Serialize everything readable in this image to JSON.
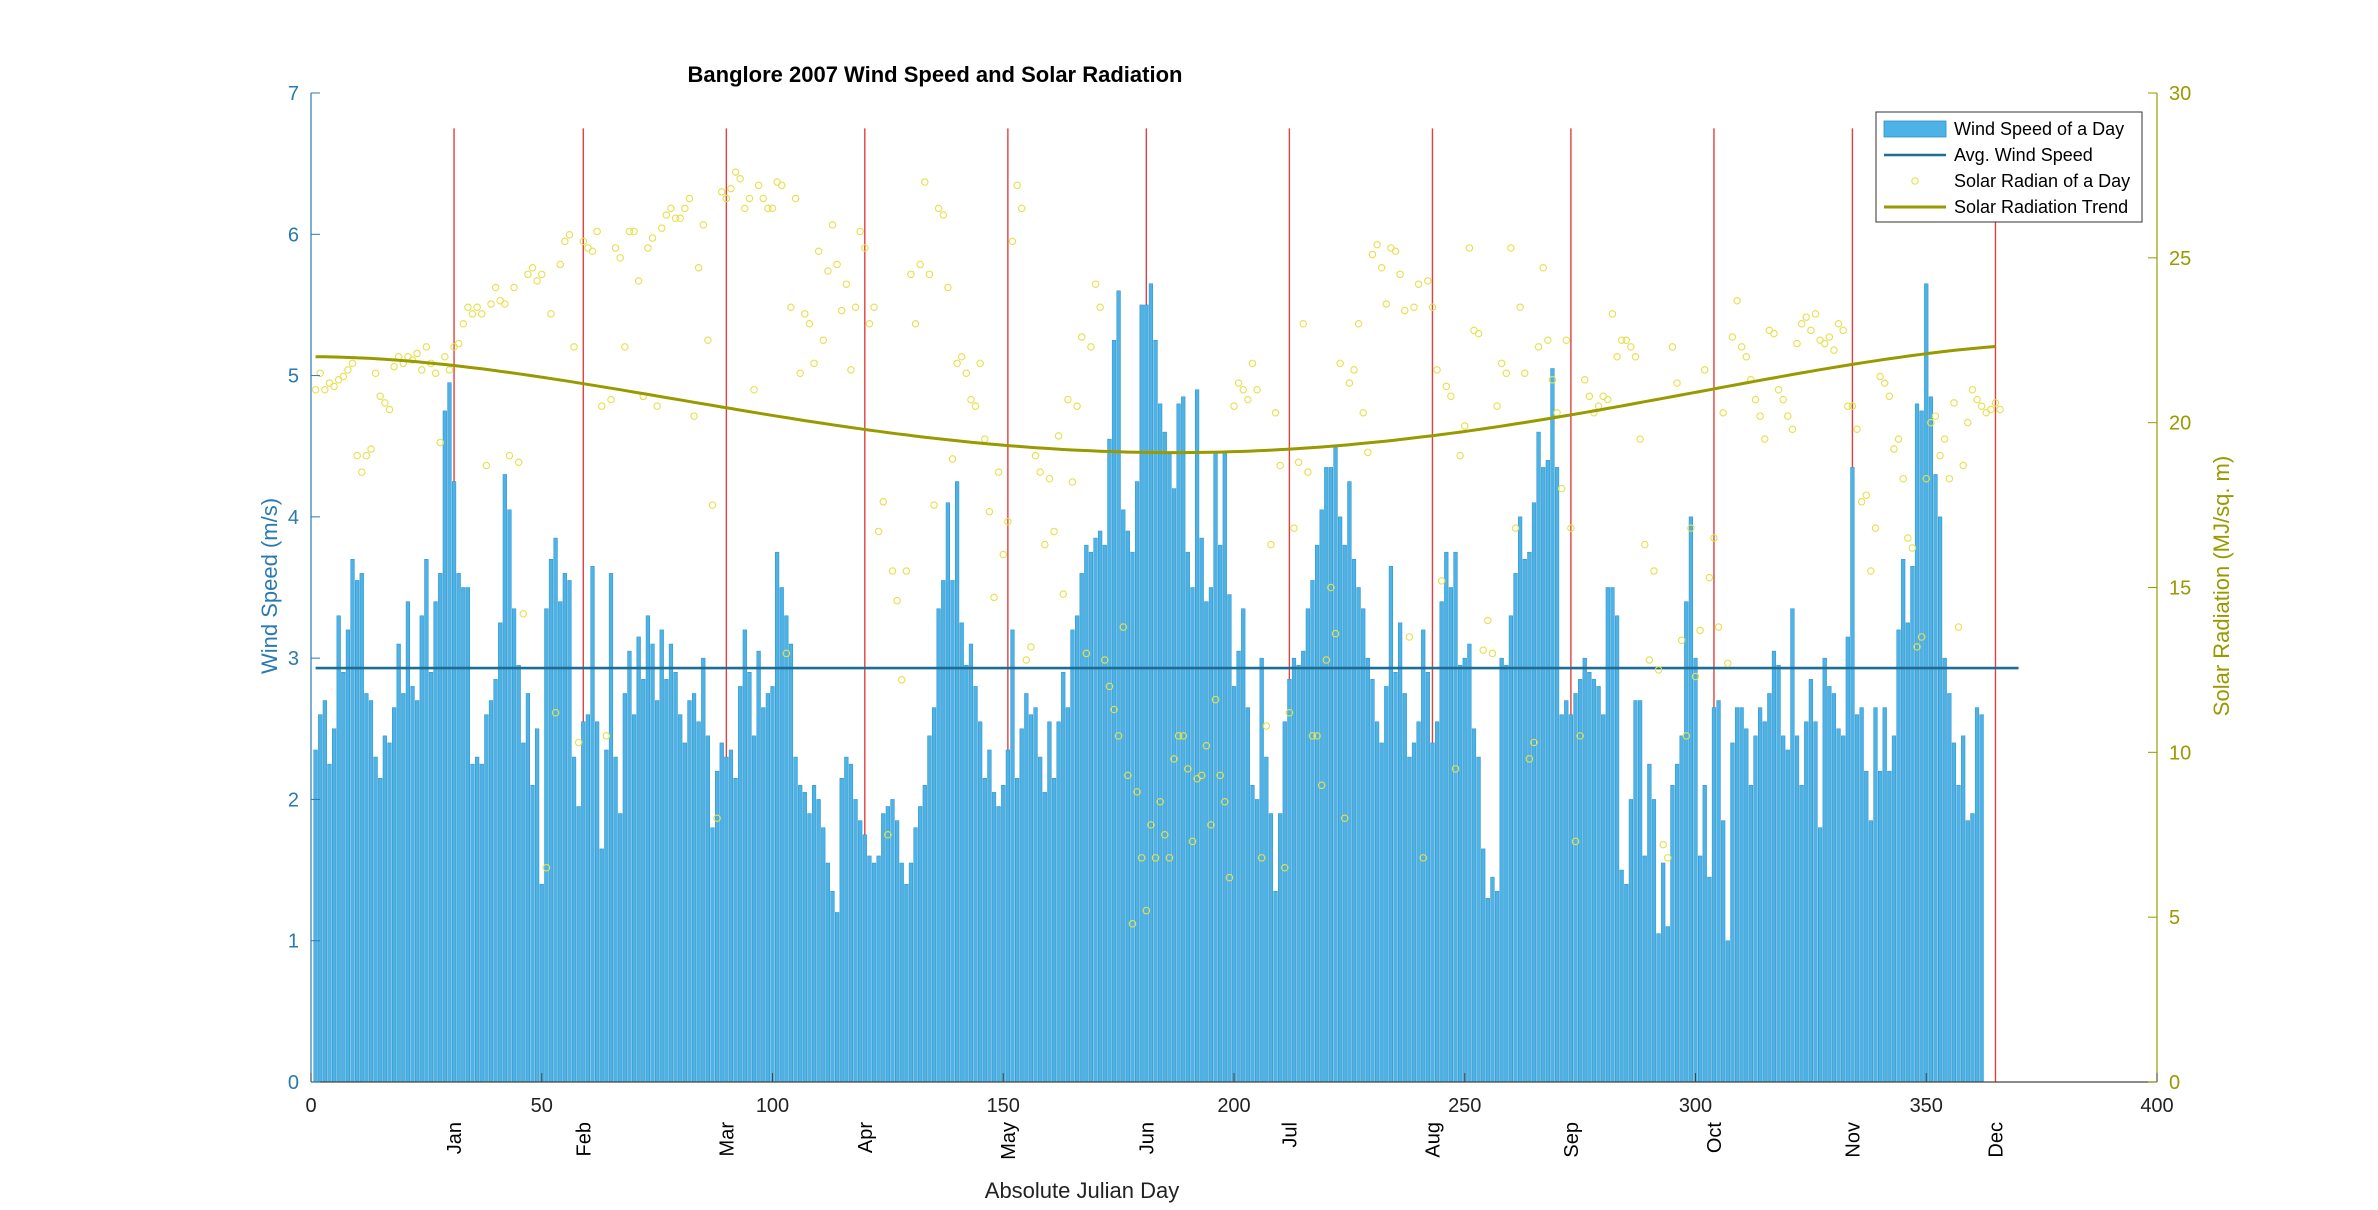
{
  "chart_data": {
    "type": "bar",
    "title": "Banglore 2007 Wind Speed and Solar Radiation",
    "xlabel": "Absolute Julian Day",
    "ylabel_left": "Wind Speed (m/s)",
    "ylabel_right": "Solar Radiation (MJ/sq. m)",
    "xlim": [
      0,
      400
    ],
    "ylim_left": [
      0,
      7
    ],
    "ylim_right": [
      0,
      30
    ],
    "x_ticks": [
      0,
      50,
      100,
      150,
      200,
      250,
      300,
      350,
      400
    ],
    "y_left_ticks": [
      0,
      1,
      2,
      3,
      4,
      5,
      6,
      7
    ],
    "y_right_ticks": [
      0,
      5,
      10,
      15,
      20,
      25,
      30
    ],
    "month_lines": [
      {
        "label": "Jan",
        "day": 31
      },
      {
        "label": "Feb",
        "day": 59
      },
      {
        "label": "Mar",
        "day": 90
      },
      {
        "label": "Apr",
        "day": 120
      },
      {
        "label": "May",
        "day": 151
      },
      {
        "label": "Jun",
        "day": 181
      },
      {
        "label": "Jul",
        "day": 212
      },
      {
        "label": "Aug",
        "day": 243
      },
      {
        "label": "Sep",
        "day": 273
      },
      {
        "label": "Oct",
        "day": 304
      },
      {
        "label": "Nov",
        "day": 334
      },
      {
        "label": "Dec",
        "day": 365
      }
    ],
    "legend": {
      "position": "top-right",
      "entries": [
        "Wind Speed of a Day",
        "Avg. Wind Speed",
        "Solar Radian of a Day",
        "Solar Radiation Trend"
      ]
    },
    "avg_wind_speed": 2.93,
    "wind_speed_daily": [
      2.35,
      2.6,
      2.7,
      2.25,
      2.5,
      3.3,
      2.9,
      3.2,
      3.7,
      3.55,
      3.6,
      2.75,
      2.7,
      2.3,
      2.15,
      2.45,
      2.4,
      2.65,
      3.1,
      2.75,
      3.4,
      2.8,
      2.7,
      3.3,
      3.7,
      2.9,
      3.4,
      3.6,
      4.75,
      4.95,
      4.25,
      3.6,
      3.5,
      3.5,
      2.25,
      2.3,
      2.25,
      2.6,
      2.7,
      2.85,
      3.25,
      4.3,
      4.05,
      3.35,
      2.95,
      2.4,
      2.75,
      2.1,
      2.5,
      1.4,
      3.35,
      3.7,
      3.85,
      3.4,
      3.6,
      3.55,
      2.3,
      1.95,
      2.55,
      2.6,
      3.65,
      2.55,
      1.65,
      2.35,
      3.6,
      2.3,
      1.9,
      2.75,
      3.05,
      2.6,
      3.15,
      2.85,
      3.3,
      3.1,
      2.7,
      3.2,
      2.85,
      3.1,
      2.9,
      2.6,
      2.4,
      2.7,
      2.75,
      2.55,
      3.0,
      2.45,
      1.8,
      2.2,
      2.4,
      2.3,
      2.35,
      2.15,
      2.8,
      3.2,
      2.9,
      2.45,
      3.05,
      2.65,
      2.75,
      2.8,
      3.75,
      3.5,
      3.3,
      3.1,
      2.3,
      2.1,
      2.05,
      1.9,
      2.1,
      2.0,
      1.8,
      1.55,
      1.35,
      1.2,
      2.15,
      2.3,
      2.25,
      2.0,
      1.85,
      1.75,
      1.6,
      1.55,
      1.6,
      1.9,
      1.95,
      2.0,
      1.85,
      1.55,
      1.4,
      1.55,
      1.8,
      1.95,
      2.1,
      2.45,
      2.65,
      3.35,
      3.55,
      4.1,
      3.55,
      4.25,
      3.25,
      2.95,
      3.1,
      2.8,
      2.55,
      2.15,
      2.35,
      2.05,
      1.95,
      2.1,
      2.35,
      3.2,
      2.15,
      2.5,
      2.75,
      2.6,
      2.65,
      2.3,
      2.05,
      2.55,
      2.15,
      2.55,
      2.9,
      2.65,
      3.2,
      3.3,
      3.6,
      3.8,
      3.75,
      3.85,
      3.9,
      3.8,
      4.55,
      5.25,
      5.6,
      4.05,
      3.9,
      3.75,
      4.25,
      5.5,
      5.5,
      5.65,
      5.25,
      4.8,
      4.6,
      4.45,
      4.2,
      4.8,
      4.85,
      3.75,
      3.5,
      4.9,
      3.85,
      3.4,
      3.5,
      4.45,
      3.8,
      4.45,
      3.45,
      2.8,
      3.05,
      3.35,
      2.65,
      2.1,
      2.0,
      3.0,
      2.3,
      1.9,
      1.35,
      1.9,
      2.55,
      2.85,
      3.0,
      2.95,
      3.05,
      3.35,
      3.55,
      3.8,
      4.05,
      4.35,
      4.35,
      4.5,
      4.0,
      3.8,
      4.25,
      3.7,
      3.5,
      3.35,
      3.0,
      2.85,
      2.55,
      2.4,
      2.8,
      3.65,
      2.9,
      3.25,
      2.75,
      2.3,
      2.4,
      2.55,
      3.2,
      2.9,
      2.4,
      2.55,
      3.4,
      3.75,
      3.5,
      3.75,
      2.95,
      3.0,
      3.1,
      2.5,
      2.3,
      1.65,
      1.3,
      1.45,
      1.35,
      3.0,
      2.95,
      3.3,
      3.6,
      4.0,
      3.7,
      3.75,
      4.1,
      4.6,
      4.35,
      4.4,
      5.05,
      4.35,
      2.6,
      2.7,
      2.6,
      2.75,
      2.85,
      3.0,
      2.9,
      2.85,
      2.8,
      2.6,
      3.5,
      3.5,
      3.3,
      1.5,
      1.4,
      2.0,
      2.7,
      2.7,
      1.6,
      2.25,
      2.0,
      1.05,
      1.55,
      1.1,
      2.1,
      2.25,
      2.45,
      3.4,
      4.0,
      3.0,
      1.6,
      2.1,
      1.45,
      2.65,
      2.7,
      1.85,
      1.0,
      2.4,
      2.65,
      2.65,
      2.5,
      2.1,
      2.45,
      2.65,
      2.55,
      2.75,
      3.05,
      2.95,
      2.45,
      2.35,
      3.35,
      2.45,
      2.1,
      2.55,
      2.85,
      2.55,
      1.8,
      3.0,
      2.8,
      2.75,
      2.5,
      2.45,
      3.15,
      4.35,
      2.6,
      2.65,
      2.2,
      1.85,
      2.65,
      2.2,
      2.65,
      2.2,
      2.45,
      3.2,
      3.7,
      3.25,
      3.65,
      4.8,
      4.75,
      5.65,
      4.85,
      4.3,
      4.0,
      3.0,
      2.75,
      2.4,
      2.1,
      2.45,
      1.85,
      1.9,
      2.65,
      2.6
    ],
    "solar_daily": [
      21,
      21.5,
      21,
      21.2,
      21.1,
      21.3,
      21.4,
      21.6,
      21.8,
      19,
      18.5,
      19,
      19.2,
      21.5,
      20.8,
      20.6,
      20.4,
      21.7,
      22,
      21.8,
      22,
      21.9,
      22.1,
      21.6,
      22.3,
      21.8,
      21.5,
      19.4,
      22,
      21.6,
      22.3,
      22.4,
      23,
      23.5,
      23.3,
      23.5,
      23.3,
      18.7,
      23.6,
      24.1,
      23.7,
      23.6,
      19,
      24.1,
      18.8,
      14.2,
      24.5,
      24.7,
      24.3,
      24.5,
      6.5,
      23.3,
      11.2,
      24.8,
      25.5,
      25.7,
      22.3,
      10.3,
      25.5,
      25.3,
      25.2,
      25.8,
      20.5,
      10.5,
      20.7,
      25.3,
      25,
      22.3,
      25.8,
      25.8,
      24.3,
      20.8,
      25.3,
      25.6,
      20.5,
      25.9,
      26.3,
      26.5,
      26.2,
      26.2,
      26.5,
      26.8,
      20.2,
      24.7,
      26,
      22.5,
      17.5,
      8,
      27,
      26.8,
      27.1,
      27.6,
      27.4,
      26.5,
      26.8,
      21,
      27.2,
      26.8,
      26.5,
      26.5,
      27.3,
      27.2,
      13,
      23.5,
      26.8,
      21.5,
      23.3,
      23,
      21.8,
      25.2,
      22.5,
      24.6,
      26,
      24.8,
      23.4,
      24.2,
      21.6,
      23.5,
      25.8,
      25.3,
      23,
      23.5,
      16.7,
      17.6,
      7.5,
      15.5,
      14.6,
      12.2,
      15.5,
      24.5,
      23,
      24.8,
      27.3,
      24.5,
      17.5,
      26.5,
      26.3,
      24.1,
      18.9,
      21.8,
      22,
      21.5,
      20.7,
      20.5,
      21.8,
      19.5,
      17.3,
      14.7,
      18.5,
      16,
      17,
      25.5,
      27.2,
      26.5,
      12.8,
      13.2,
      19,
      18.5,
      16.3,
      18.3,
      16.7,
      19.6,
      14.8,
      20.7,
      18.2,
      20.5,
      22.6,
      13,
      22.3,
      24.2,
      23.5,
      12.8,
      12,
      11.3,
      10.5,
      13.8,
      9.3,
      4.8,
      8.8,
      6.8,
      5.2,
      7.8,
      6.8,
      8.5,
      7.5,
      6.8,
      9.8,
      10.5,
      10.5,
      9.5,
      7.3,
      9.2,
      9.3,
      10.2,
      7.8,
      11.6,
      9.3,
      8.5,
      6.2,
      20.5,
      21.2,
      21,
      20.7,
      21.8,
      21,
      6.8,
      10.8,
      16.3,
      20.3,
      18.7,
      6.5,
      11.2,
      16.8,
      18.8,
      23,
      18.5,
      10.5,
      10.5,
      9,
      12.8,
      15,
      13.6,
      21.8,
      8,
      21.2,
      21.6,
      23,
      20.3,
      19.1,
      25.1,
      25.4,
      24.7,
      23.6,
      25.3,
      25.2,
      24.5,
      23.4,
      13.5,
      23.5,
      24.2,
      6.8,
      24.3,
      23.5,
      21.6,
      15.2,
      21.1,
      20.8,
      9.5,
      19,
      19.9,
      25.3,
      22.8,
      22.7,
      13.1,
      14,
      13,
      20.5,
      21.8,
      21.5,
      25.3,
      16.8,
      23.5,
      21.5,
      9.8,
      10.3,
      22.3,
      24.7,
      22.5,
      21.3,
      20.3,
      18,
      22.5,
      16.8,
      7.3,
      10.5,
      21.3,
      20.8,
      20.3,
      20.5,
      20.8,
      20.7,
      23.3,
      22,
      22.5,
      22.5,
      22.3,
      22,
      19.5,
      16.3,
      12.8,
      15.5,
      12.5,
      7.2,
      6.8,
      22.3,
      21.2,
      13.4,
      10.5,
      16.8,
      12.3,
      13.7,
      21.6,
      15.3,
      16.5,
      13.8,
      20.3,
      12.7,
      22.6,
      23.7,
      22.3,
      22,
      21.3,
      20.7,
      20.2,
      19.5,
      22.8,
      22.7,
      21,
      20.7,
      20.2,
      19.8,
      22.4,
      23,
      23.2,
      22.8,
      23.3,
      22.5,
      22.4,
      22.6,
      22.2,
      23,
      22.8,
      20.5,
      20.5,
      19.8,
      17.6,
      17.8,
      15.5,
      16.8,
      21.4,
      21.2,
      20.8,
      19.2,
      19.5,
      18.3,
      16.5,
      16.2,
      13.2,
      13.5,
      18.3,
      20,
      20.2,
      19,
      19.5,
      18.3,
      20.6,
      13.8,
      18.7,
      20,
      21,
      20.7,
      20.5,
      20.3,
      20.4,
      20.6,
      20.4
    ],
    "solar_trend_coeffs": [
      22.0,
      0.0,
      -0.00033,
      1.75e-06,
      -2.3e-09
    ],
    "colors": {
      "bars": "#4db3e6",
      "bar_edge": "#2a8fc7",
      "avg_line": "#1f6c94",
      "solar_dots": "#e5e04d",
      "trend": "#999900",
      "month_lines": "#e04040",
      "left_axis": "#2a7ab0",
      "right_axis": "#999900"
    }
  }
}
